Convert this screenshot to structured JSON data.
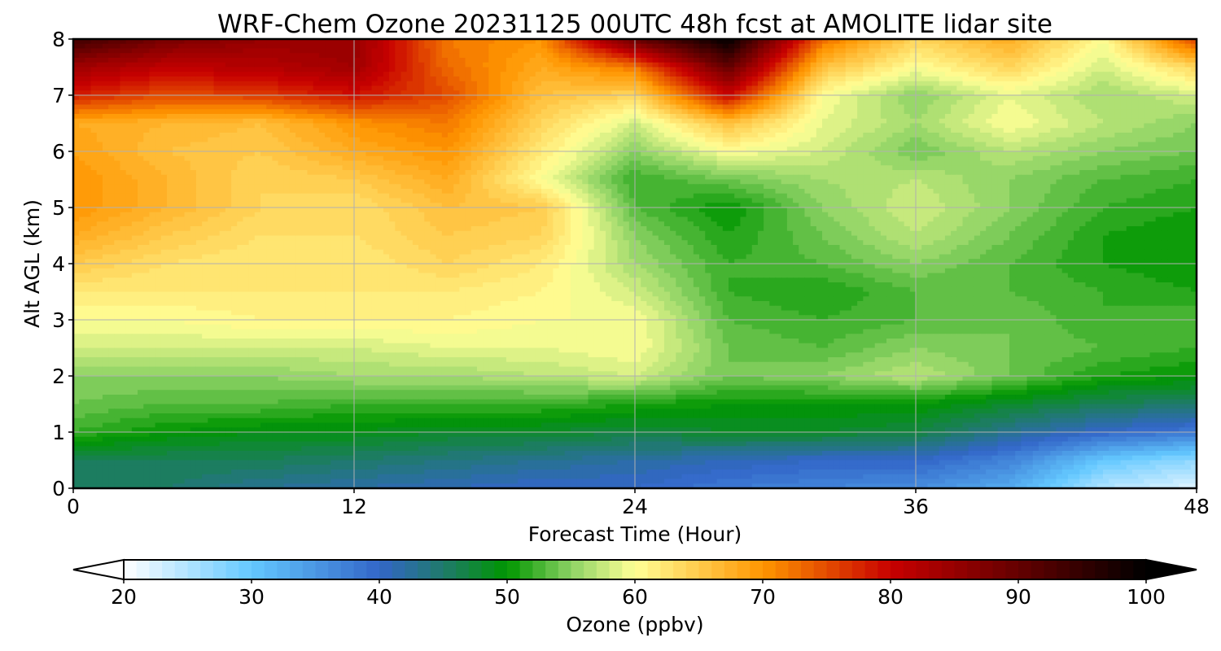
{
  "chart_data": {
    "type": "heatmap",
    "title": "WRF-Chem Ozone  20231125 00UTC 48h fcst at AMOLITE lidar site",
    "xlabel": "Forecast Time (Hour)",
    "ylabel": "Alt AGL (km)",
    "xlim": [
      0,
      48
    ],
    "ylim": [
      0,
      8
    ],
    "xticks": [
      "0",
      "12",
      "24",
      "36",
      "48"
    ],
    "yticks": [
      "0",
      "1",
      "2",
      "3",
      "4",
      "5",
      "6",
      "7",
      "8"
    ],
    "grid": true,
    "x_hours": [
      0,
      4,
      8,
      12,
      16,
      20,
      24,
      28,
      32,
      36,
      40,
      44,
      48
    ],
    "y_km": [
      0,
      0.5,
      1,
      1.5,
      2,
      2.5,
      3,
      3.5,
      4,
      4.5,
      5,
      5.5,
      6,
      6.5,
      7,
      7.5,
      8
    ],
    "ozone_ppbv": [
      [
        45,
        45,
        43,
        42,
        41,
        40,
        40,
        38,
        37,
        36,
        33,
        25,
        22
      ],
      [
        46,
        46,
        46,
        45,
        44,
        43,
        42,
        41,
        40,
        40,
        37,
        30,
        27
      ],
      [
        52,
        50,
        49,
        49,
        48,
        48,
        47,
        48,
        48,
        47,
        43,
        40,
        38
      ],
      [
        54,
        53,
        53,
        52,
        52,
        52,
        51,
        50,
        50,
        50,
        48,
        46,
        45
      ],
      [
        55,
        55,
        55,
        56,
        56,
        57,
        58,
        54,
        55,
        57,
        54,
        51,
        50
      ],
      [
        58,
        58,
        58,
        58,
        59,
        59,
        60,
        54,
        53,
        55,
        54,
        53,
        52
      ],
      [
        60,
        60,
        61,
        61,
        61,
        60,
        60,
        53,
        52,
        53,
        54,
        52,
        53
      ],
      [
        62,
        62,
        62,
        62,
        62,
        61,
        58,
        52,
        51,
        53,
        53,
        52,
        51
      ],
      [
        65,
        63,
        62,
        62,
        64,
        62,
        56,
        52,
        53,
        55,
        53,
        51,
        50
      ],
      [
        68,
        65,
        63,
        63,
        65,
        64,
        55,
        51,
        54,
        57,
        54,
        51,
        50
      ],
      [
        70,
        67,
        64,
        63,
        66,
        65,
        53,
        50,
        55,
        58,
        55,
        52,
        51
      ],
      [
        70,
        67,
        64,
        65,
        68,
        60,
        52,
        54,
        56,
        57,
        55,
        53,
        52
      ],
      [
        69,
        66,
        65,
        68,
        70,
        62,
        55,
        60,
        58,
        54,
        57,
        55,
        54
      ],
      [
        68,
        67,
        66,
        70,
        72,
        64,
        58,
        66,
        59,
        56,
        60,
        57,
        55
      ],
      [
        78,
        75,
        76,
        79,
        75,
        66,
        64,
        80,
        60,
        55,
        59,
        56,
        58
      ],
      [
        84,
        81,
        82,
        84,
        73,
        68,
        72,
        90,
        66,
        60,
        64,
        58,
        64
      ],
      [
        94,
        88,
        85,
        85,
        72,
        70,
        90,
        100,
        73,
        64,
        68,
        60,
        76
      ]
    ]
  },
  "colorbar": {
    "label": "Ozone  (ppbv)",
    "min": 20,
    "max": 100,
    "step": 1,
    "ticks": [
      "20",
      "30",
      "40",
      "50",
      "60",
      "70",
      "80",
      "90",
      "100"
    ],
    "extend": "both",
    "under_color": "#ffffff",
    "over_color": "#000000",
    "stops": [
      [
        20,
        "#ffffff"
      ],
      [
        30,
        "#63c8ff"
      ],
      [
        40,
        "#3366c8"
      ],
      [
        45,
        "#1f7a6b"
      ],
      [
        50,
        "#009600"
      ],
      [
        55,
        "#8cd264"
      ],
      [
        60,
        "#ffff96"
      ],
      [
        70,
        "#ff9600"
      ],
      [
        80,
        "#c80000"
      ],
      [
        90,
        "#640000"
      ],
      [
        100,
        "#000000"
      ]
    ]
  }
}
